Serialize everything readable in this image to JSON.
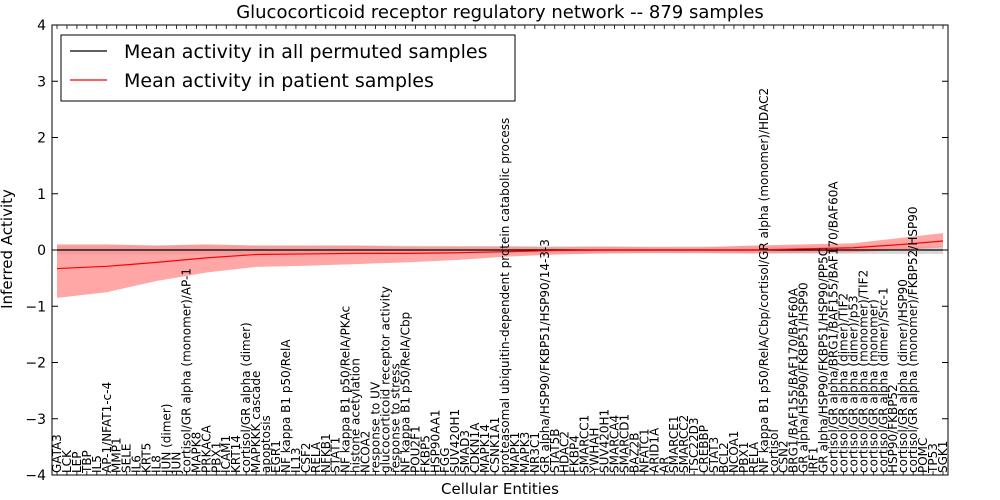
{
  "chart_data": {
    "type": "line",
    "title": "Glucocorticoid receptor regulatory network -- 879 samples",
    "xlabel": "Cellular Entities",
    "ylabel": "Inferred Activity",
    "ylim": [
      -4,
      4
    ],
    "yticks": [
      "4",
      "3",
      "2",
      "1",
      "0",
      "−1",
      "−2",
      "−3",
      "−4"
    ],
    "grid": false,
    "legend_position": "top-left",
    "series": [
      {
        "name": "Mean activity in all permuted samples",
        "color": "#000000",
        "band_color": "#c8c8c8",
        "values": [
          0.0,
          0.0,
          0.0,
          0.0
        ],
        "x": [
          0,
          30,
          60,
          89
        ],
        "band_halfwidth": [
          0.08,
          0.08,
          0.06,
          0.07
        ]
      },
      {
        "name": "Mean activity in patient samples",
        "color": "#ff0000",
        "band_color": "#ff8a8a",
        "x": [
          0,
          5,
          10,
          15,
          20,
          25,
          30,
          35,
          40,
          45,
          50,
          55,
          60,
          65,
          70,
          75,
          80,
          85,
          89
        ],
        "values": [
          -0.33,
          -0.29,
          -0.22,
          -0.14,
          -0.08,
          -0.07,
          -0.06,
          -0.06,
          -0.05,
          -0.03,
          -0.01,
          0.0,
          0.0,
          0.0,
          0.0,
          0.02,
          0.04,
          0.1,
          0.16
        ],
        "lower": [
          -0.85,
          -0.75,
          -0.55,
          -0.4,
          -0.3,
          -0.28,
          -0.25,
          -0.22,
          -0.18,
          -0.12,
          -0.08,
          -0.06,
          -0.05,
          -0.05,
          -0.06,
          -0.05,
          -0.04,
          0.0,
          0.05
        ],
        "upper": [
          0.1,
          0.1,
          0.08,
          0.1,
          0.08,
          0.08,
          0.08,
          0.06,
          0.06,
          0.06,
          0.05,
          0.06,
          0.05,
          0.05,
          0.08,
          0.1,
          0.12,
          0.22,
          0.3
        ]
      }
    ],
    "entity_count": 90,
    "labels": [
      "GATA3",
      "LCK",
      "LEP",
      "TBP",
      "IL5",
      "AP-1/NFAT1-c-4",
      "MMP1",
      "SELE",
      "IL6",
      "KRT5",
      "IL8",
      "JUN (dimer)",
      "JUN",
      "cortisol/GR alpha (monomer)/AP-1",
      "MAPK8",
      "PRKACA",
      "PBX1",
      "ICAM1",
      "KRT14",
      "cortisol/GR alpha (dimer)",
      "MAPKKK cascade",
      "apoptosis",
      "EGR1",
      "NF kappa B1 p50/RelA",
      "IL13",
      "CSF2",
      "RELA",
      "NFKB1",
      "STAT1",
      "NF kappa B1 p50/RelA/PKAc",
      "histone acetylation",
      "NCOA2",
      "response to UV",
      "glucocorticoid receptor activity",
      "response to stress",
      "NF kappa B1 p50/RelA/Cbp",
      "POU2F1",
      "FKBP5",
      "HSP90AA1",
      "FGG",
      "SUV420H1",
      "SMAD3",
      "CDKN1A",
      "MAPK14",
      "CSNK1A1",
      "proteasomal ubiquitin-dependent protein catabolic process",
      "MAPK1",
      "MAPK3",
      "NR3C1",
      "GR alpha/HSP90/FKBP51/HSP90/14-3-3",
      "STAT5B",
      "HDAC2",
      "FKBP4",
      "SMARCC1",
      "YWHAH",
      "SUV420H1",
      "SMARCA4",
      "SMARCD1",
      "BAZ2B",
      "NFATC1",
      "ARID1A",
      "AR",
      "SMARCE1",
      "SMARCC2",
      "TSC22D3",
      "CREBBP",
      "STAT3",
      "BCL2",
      "NCOA1",
      "PBX1",
      "RELA",
      "NF kappa B1 p50/RelA/Cbp/cortisol/GR alpha (monomer)/HDAC2",
      "cortisol",
      "CSN2",
      "BRG1/BAF155/BAF170/BAF60A",
      "GR alpha/HSP90/FKBP51/HSP90",
      "IRF1",
      "GR alpha/HSP90/FKBP51/HSP90/PP5C",
      "cortisol/GR alpha/BRG1/BAF155/BAF170/BAF60A",
      "cortisol/GR alpha (dimer)/TIF2",
      "cortisol/GR alpha (dimer)/p53",
      "cortisol/GR alpha (monomer)/TIF2",
      "cortisol/GR alpha (monomer)",
      "cortisol/GR alpha (dimer)/Src-1",
      "HSP90/FKBP52",
      "cortisol/GR alpha (dimer)/HSP90",
      "cortisol/GR alpha (monomer)/FKBP52/HSP90",
      "POMC",
      "TP53",
      "SGK1"
    ]
  }
}
